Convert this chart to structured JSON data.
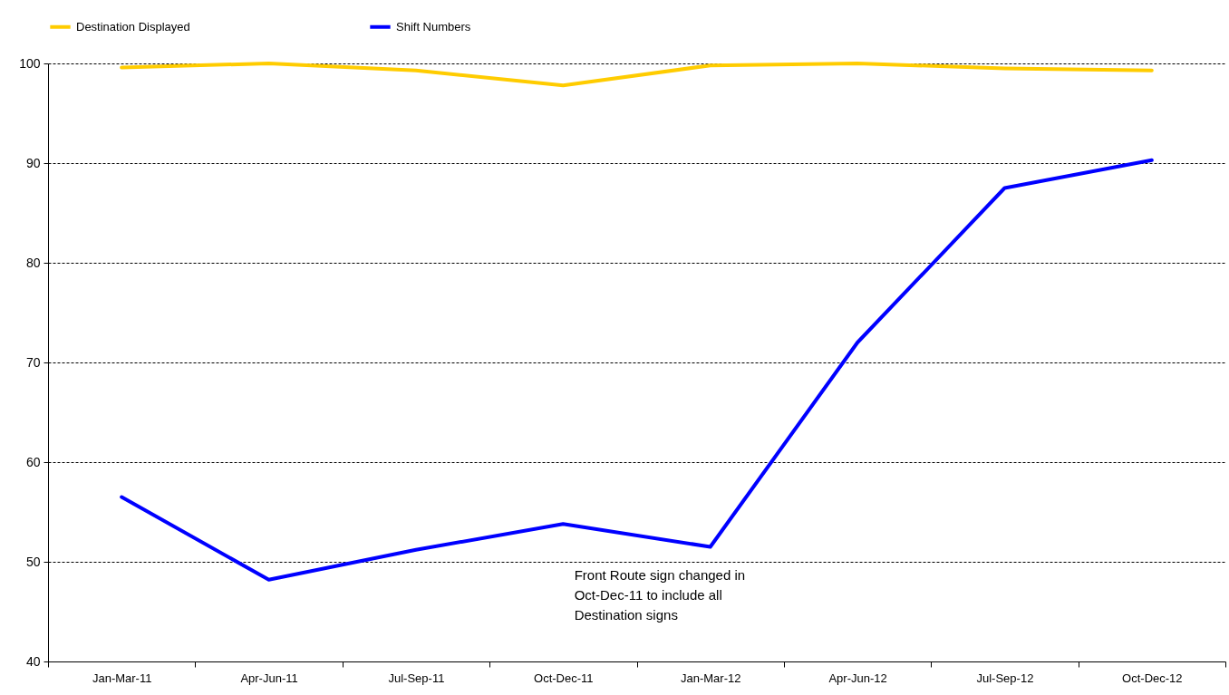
{
  "chart_data": {
    "type": "line",
    "categories": [
      "Jan-Mar-11",
      "Apr-Jun-11",
      "Jul-Sep-11",
      "Oct-Dec-11",
      "Jan-Mar-12",
      "Apr-Jun-12",
      "Jul-Sep-12",
      "Oct-Dec-12"
    ],
    "series": [
      {
        "name": "Destination Displayed",
        "color": "#ffcc00",
        "values": [
          99.6,
          100,
          99.3,
          97.8,
          99.8,
          100,
          99.5,
          99.3
        ]
      },
      {
        "name": "Shift Numbers",
        "color": "#0000ff",
        "values": [
          56.5,
          48.2,
          51.2,
          53.8,
          51.5,
          72.0,
          87.5,
          90.3
        ]
      }
    ],
    "ylim": [
      40,
      100
    ],
    "yticks": [
      40,
      50,
      60,
      70,
      80,
      90,
      100
    ],
    "grid": "y",
    "legend": "top",
    "line_style": "solid",
    "marker": "none",
    "annotations": [
      "Front Route sign changed in Oct-Dec-11 to include all Destination signs"
    ]
  }
}
